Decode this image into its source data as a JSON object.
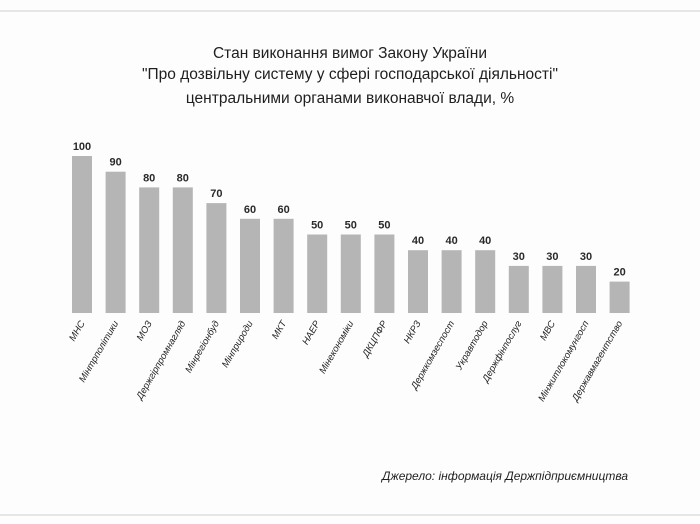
{
  "title_lines": [
    "Стан виконання вимог Закону України",
    "\"Про дозвільну систему у сфері господарської діяльності\"",
    "центральними органами виконавчої влади, %"
  ],
  "source": "Джерело: інформація Держпідприємництва",
  "chart_data": {
    "type": "bar",
    "title": "Стан виконання вимог Закону України \"Про дозвільну систему у сфері господарської діяльності\" центральними органами виконавчої влади, %",
    "xlabel": "",
    "ylabel": "",
    "ylim": [
      0,
      100
    ],
    "grid": false,
    "legend": "none",
    "bar_color": "#b5b5b5",
    "categories": [
      "МНС",
      "Мінтрполітики",
      "МОЗ",
      "Держгірпромнагляд",
      "Мінрегіонбуд",
      "Мінприроди",
      "МКТ",
      "НАЕР",
      "Мінекономіки",
      "ДКЦПФР",
      "НКРЗ",
      "Держкомзеспост",
      "Укравтодор",
      "Держфінпослуг",
      "МВС",
      "Мінжитлокомунгосп",
      "Державмагентство"
    ],
    "values": [
      100,
      90,
      80,
      80,
      70,
      60,
      60,
      50,
      50,
      50,
      40,
      40,
      40,
      30,
      30,
      30,
      20
    ]
  }
}
